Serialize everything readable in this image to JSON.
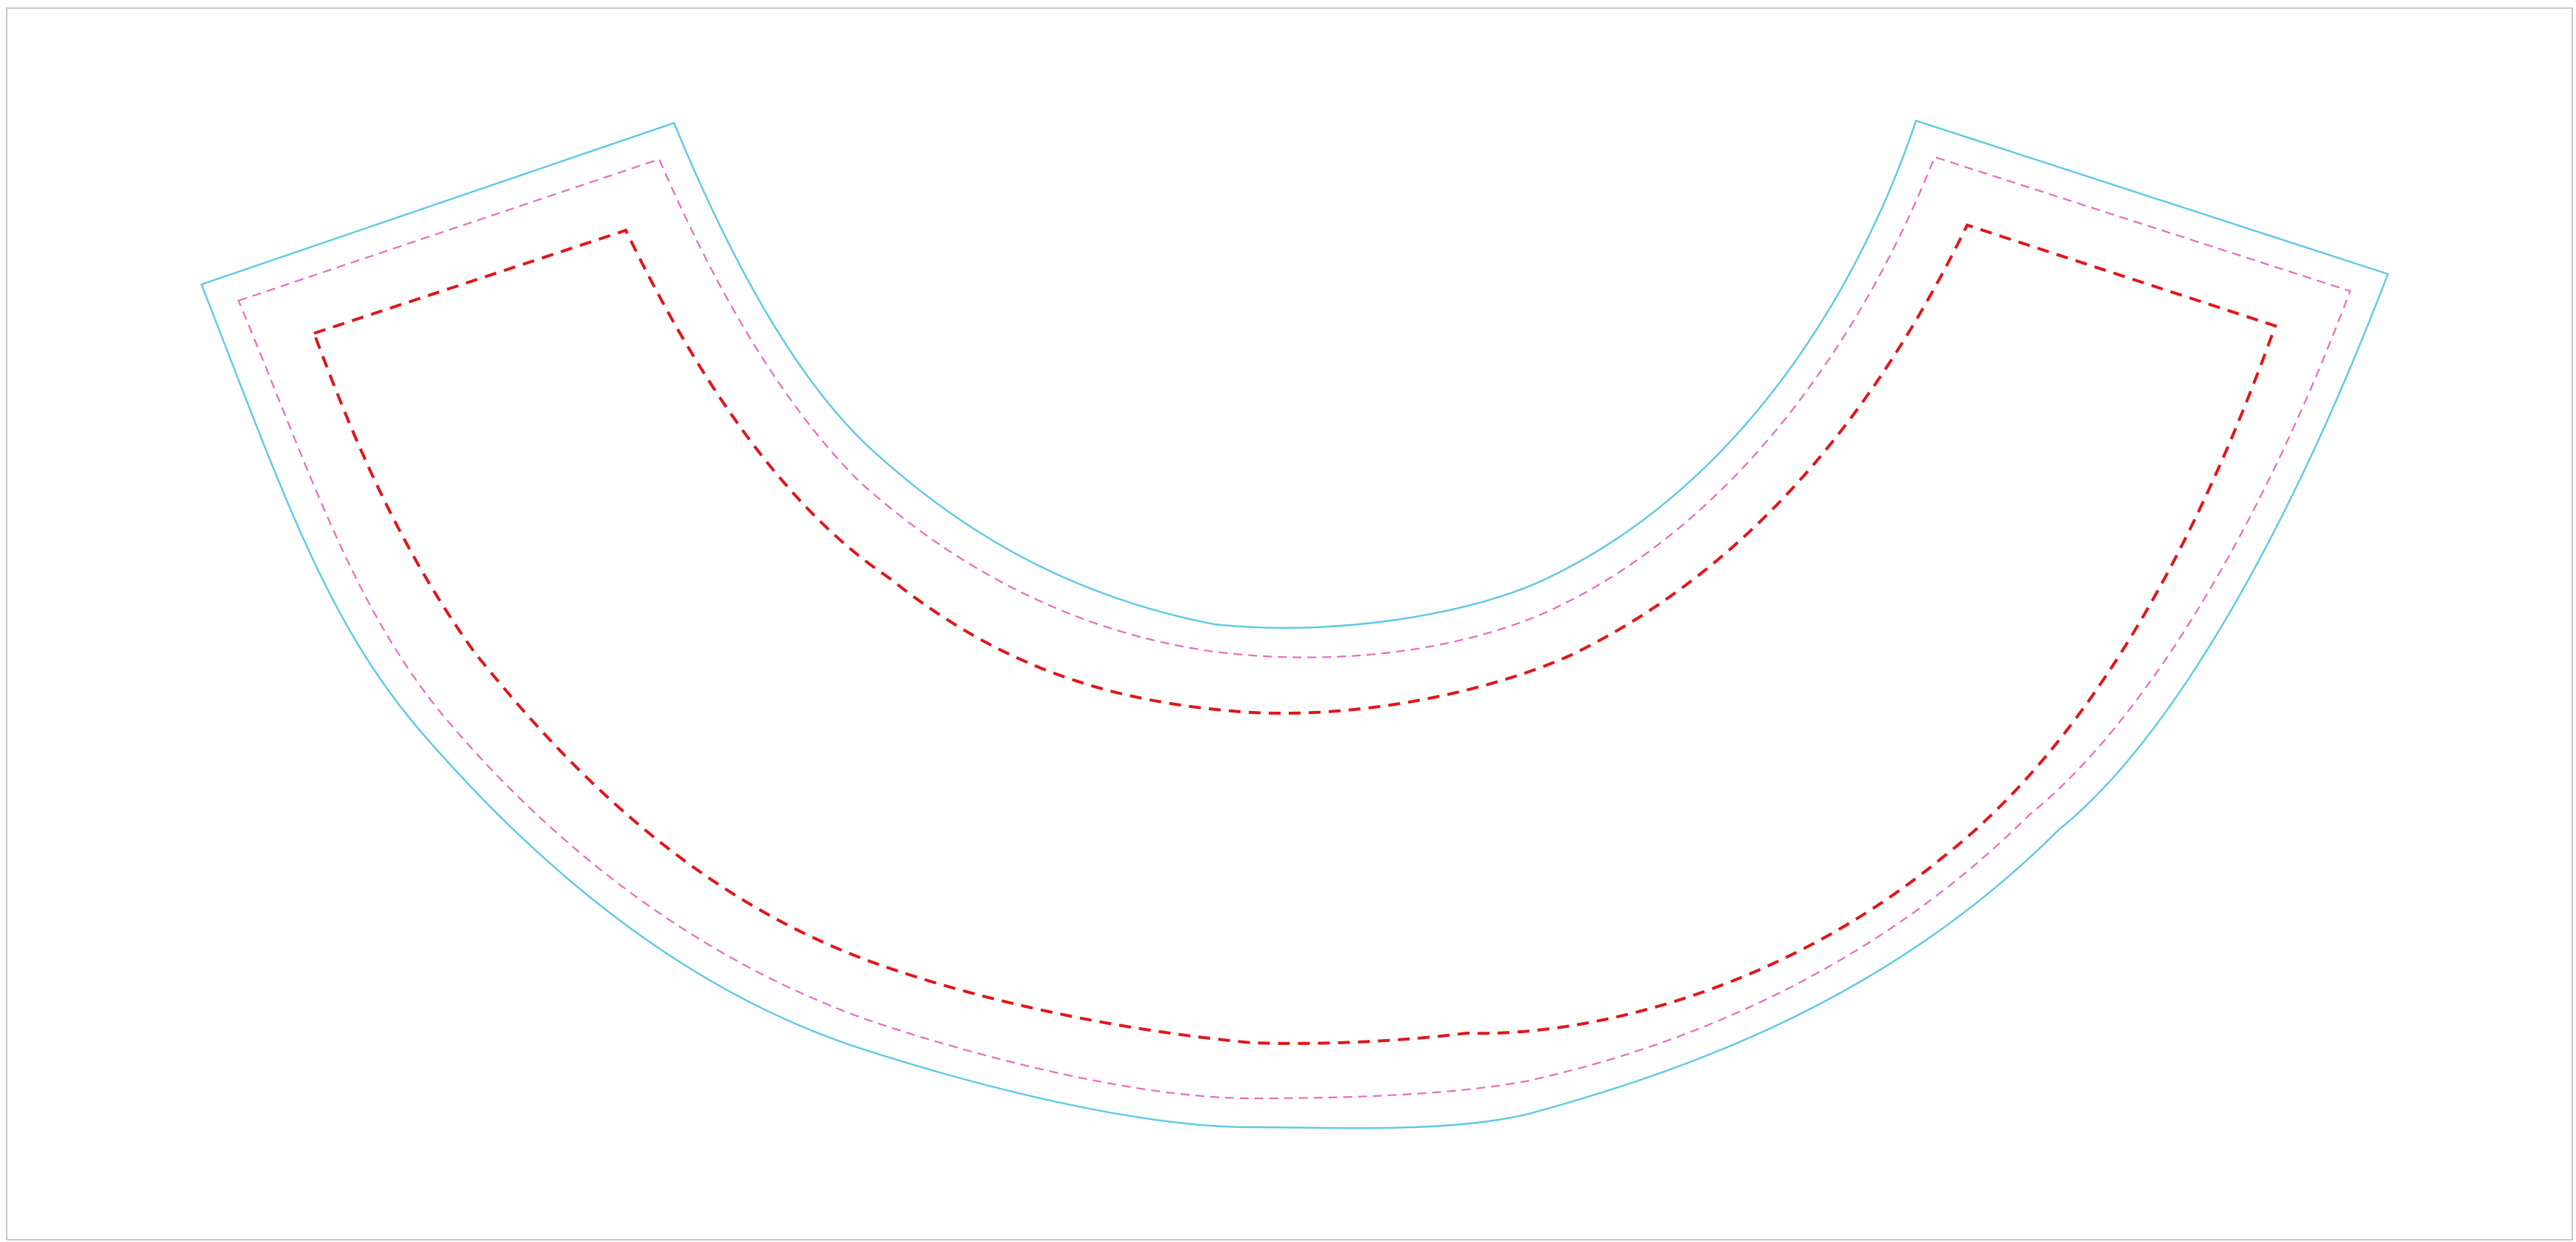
{
  "canvas": {
    "background": "#ffffff",
    "frame_color": "#c8c8c8"
  },
  "dieline": {
    "shape": "arc-sleeve",
    "lines": [
      {
        "role": "bleed",
        "style": "solid",
        "color": "#5ec8e6"
      },
      {
        "role": "trim",
        "style": "dashed",
        "color": "#e86bbd"
      },
      {
        "role": "safe-area",
        "style": "dashed",
        "color": "#e0161a"
      }
    ]
  }
}
